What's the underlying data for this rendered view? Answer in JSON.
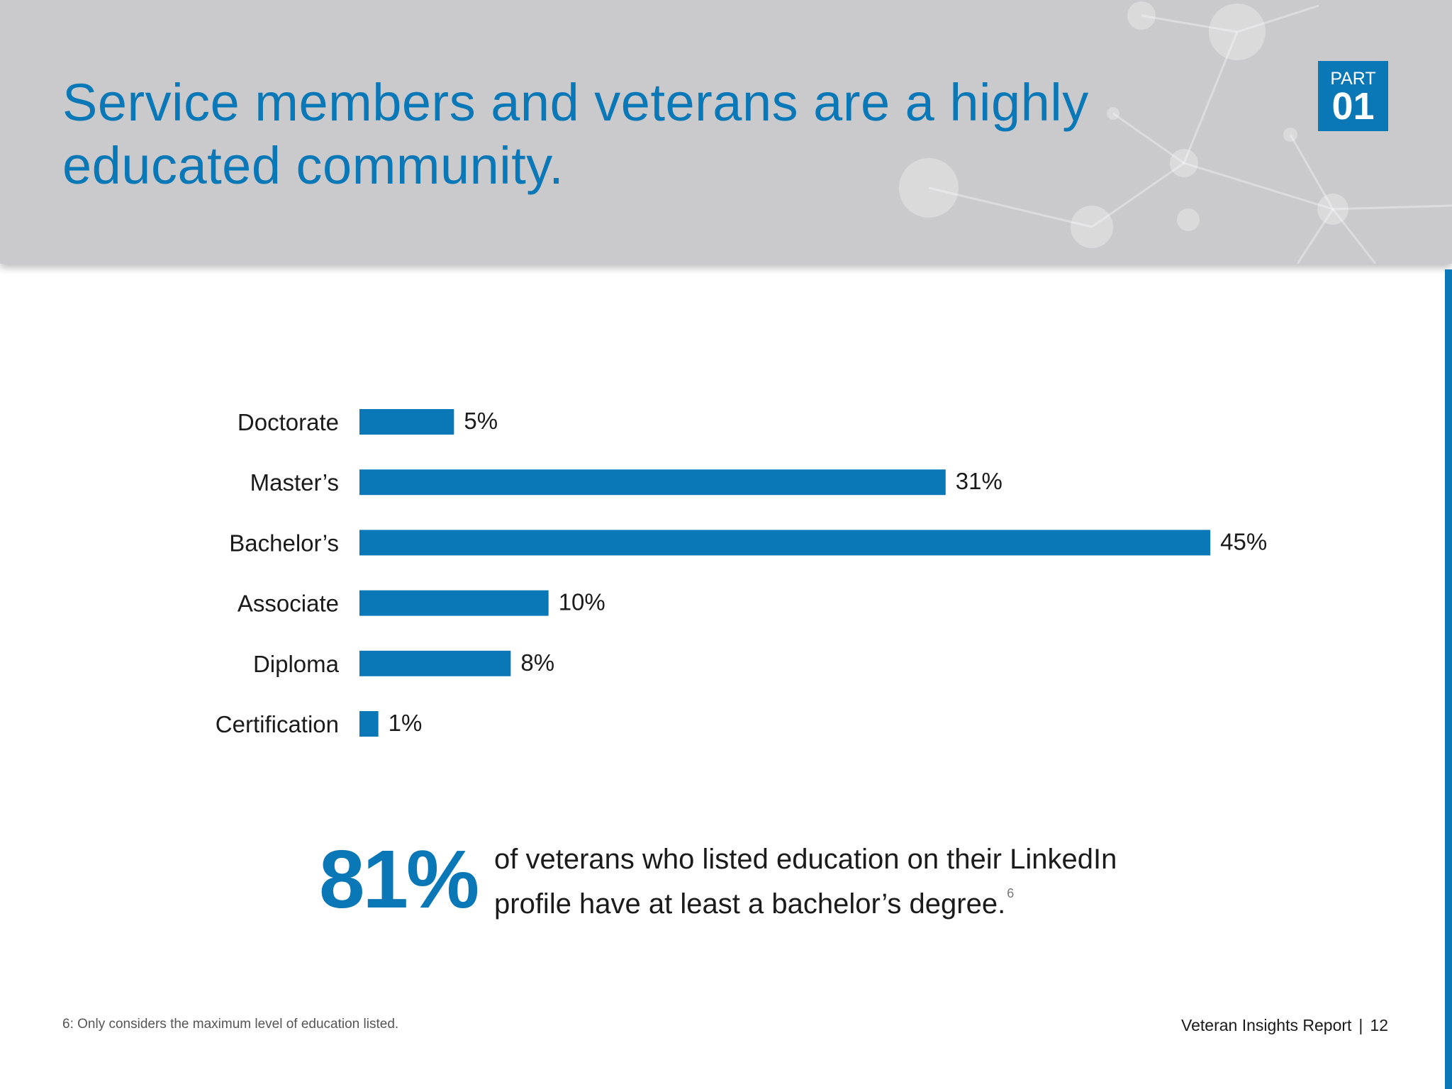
{
  "header": {
    "title_line1": "Service members and veterans are a highly",
    "title_line2": "educated community.",
    "part_label": "PART",
    "part_number": "01"
  },
  "chart_data": {
    "type": "bar",
    "orientation": "horizontal",
    "categories": [
      "Doctorate",
      "Master’s",
      "Bachelor’s",
      "Associate",
      "Diploma",
      "Certification"
    ],
    "values": [
      5,
      31,
      45,
      10,
      8,
      1
    ],
    "value_labels": [
      "5%",
      "31%",
      "45%",
      "10%",
      "8%",
      "1%"
    ],
    "unit": "%",
    "xlim": [
      0,
      45
    ],
    "grid": false,
    "legend": "none",
    "bar_color": "#0a77b6"
  },
  "highlight": {
    "number": "81%",
    "text": "of veterans who listed education on their LinkedIn profile have at least a bachelor’s degree.",
    "footnote_ref": "6"
  },
  "footnote": "6: Only considers the maximum level of education listed.",
  "footer": {
    "report_name": "Veteran Insights Report",
    "separator": "|",
    "page_number": "12"
  },
  "colors": {
    "accent": "#0a77b6",
    "header_background": "#cacacc",
    "text": "#1b1b1b"
  }
}
